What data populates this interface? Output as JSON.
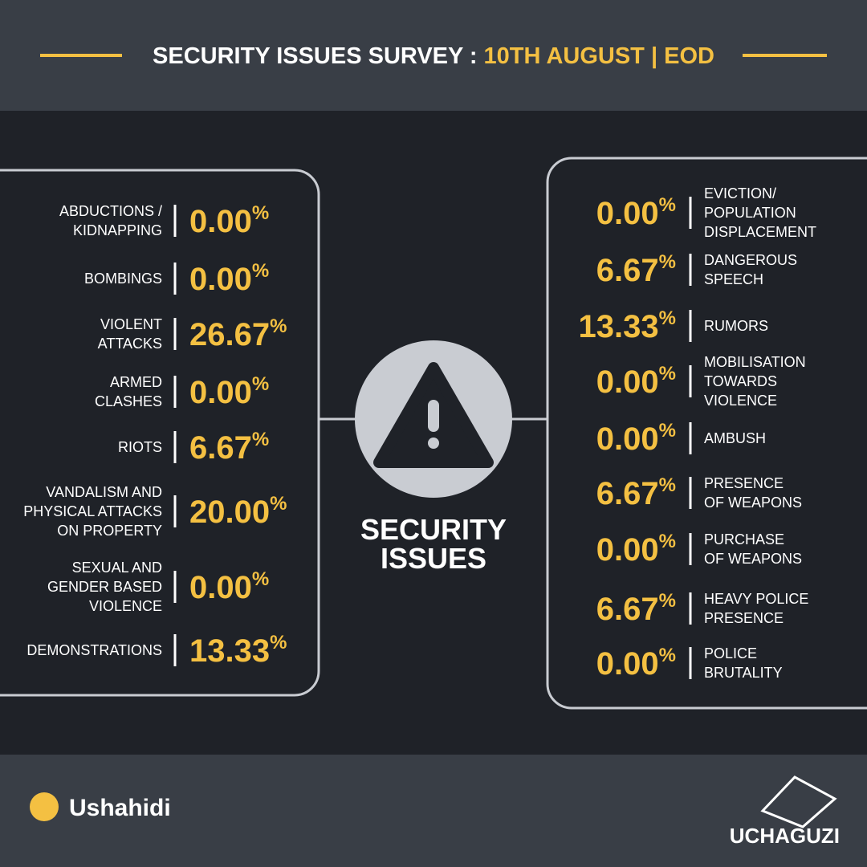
{
  "header": {
    "title": "SECURITY ISSUES SURVEY :",
    "date": "10TH AUGUST | EOD"
  },
  "unit": "%",
  "center": {
    "lines": [
      "SECURITY",
      "ISSUES"
    ]
  },
  "left": [
    {
      "label": [
        "ABDUCTIONS /",
        "KIDNAPPING"
      ],
      "value": "0.00"
    },
    {
      "label": [
        "BOMBINGS"
      ],
      "value": "0.00"
    },
    {
      "label": [
        "VIOLENT",
        "ATTACKS"
      ],
      "value": "26.67"
    },
    {
      "label": [
        "ARMED",
        "CLASHES"
      ],
      "value": "0.00"
    },
    {
      "label": [
        "RIOTS"
      ],
      "value": "6.67"
    },
    {
      "label": [
        "VANDALISM AND",
        "PHYSICAL ATTACKS",
        "ON PROPERTY"
      ],
      "value": "20.00"
    },
    {
      "label": [
        "SEXUAL AND",
        "GENDER BASED",
        "VIOLENCE"
      ],
      "value": "0.00"
    },
    {
      "label": [
        "DEMONSTRATIONS"
      ],
      "value": "13.33"
    }
  ],
  "right": [
    {
      "label": [
        "EVICTION/",
        "POPULATION",
        "DISPLACEMENT"
      ],
      "value": "0.00"
    },
    {
      "label": [
        "DANGEROUS",
        "SPEECH"
      ],
      "value": "6.67"
    },
    {
      "label": [
        "RUMORS"
      ],
      "value": "13.33"
    },
    {
      "label": [
        "MOBILISATION",
        "TOWARDS",
        "VIOLENCE"
      ],
      "value": "0.00"
    },
    {
      "label": [
        "AMBUSH"
      ],
      "value": "0.00"
    },
    {
      "label": [
        "PRESENCE",
        "OF WEAPONS"
      ],
      "value": "6.67"
    },
    {
      "label": [
        "PURCHASE",
        "OF WEAPONS"
      ],
      "value": "0.00"
    },
    {
      "label": [
        "HEAVY POLICE",
        "PRESENCE"
      ],
      "value": "6.67"
    },
    {
      "label": [
        "POLICE",
        "BRUTALITY"
      ],
      "value": "0.00"
    }
  ],
  "footer": {
    "left_logo": "Ushahidi",
    "right_logo": "UCHAGUZI"
  }
}
